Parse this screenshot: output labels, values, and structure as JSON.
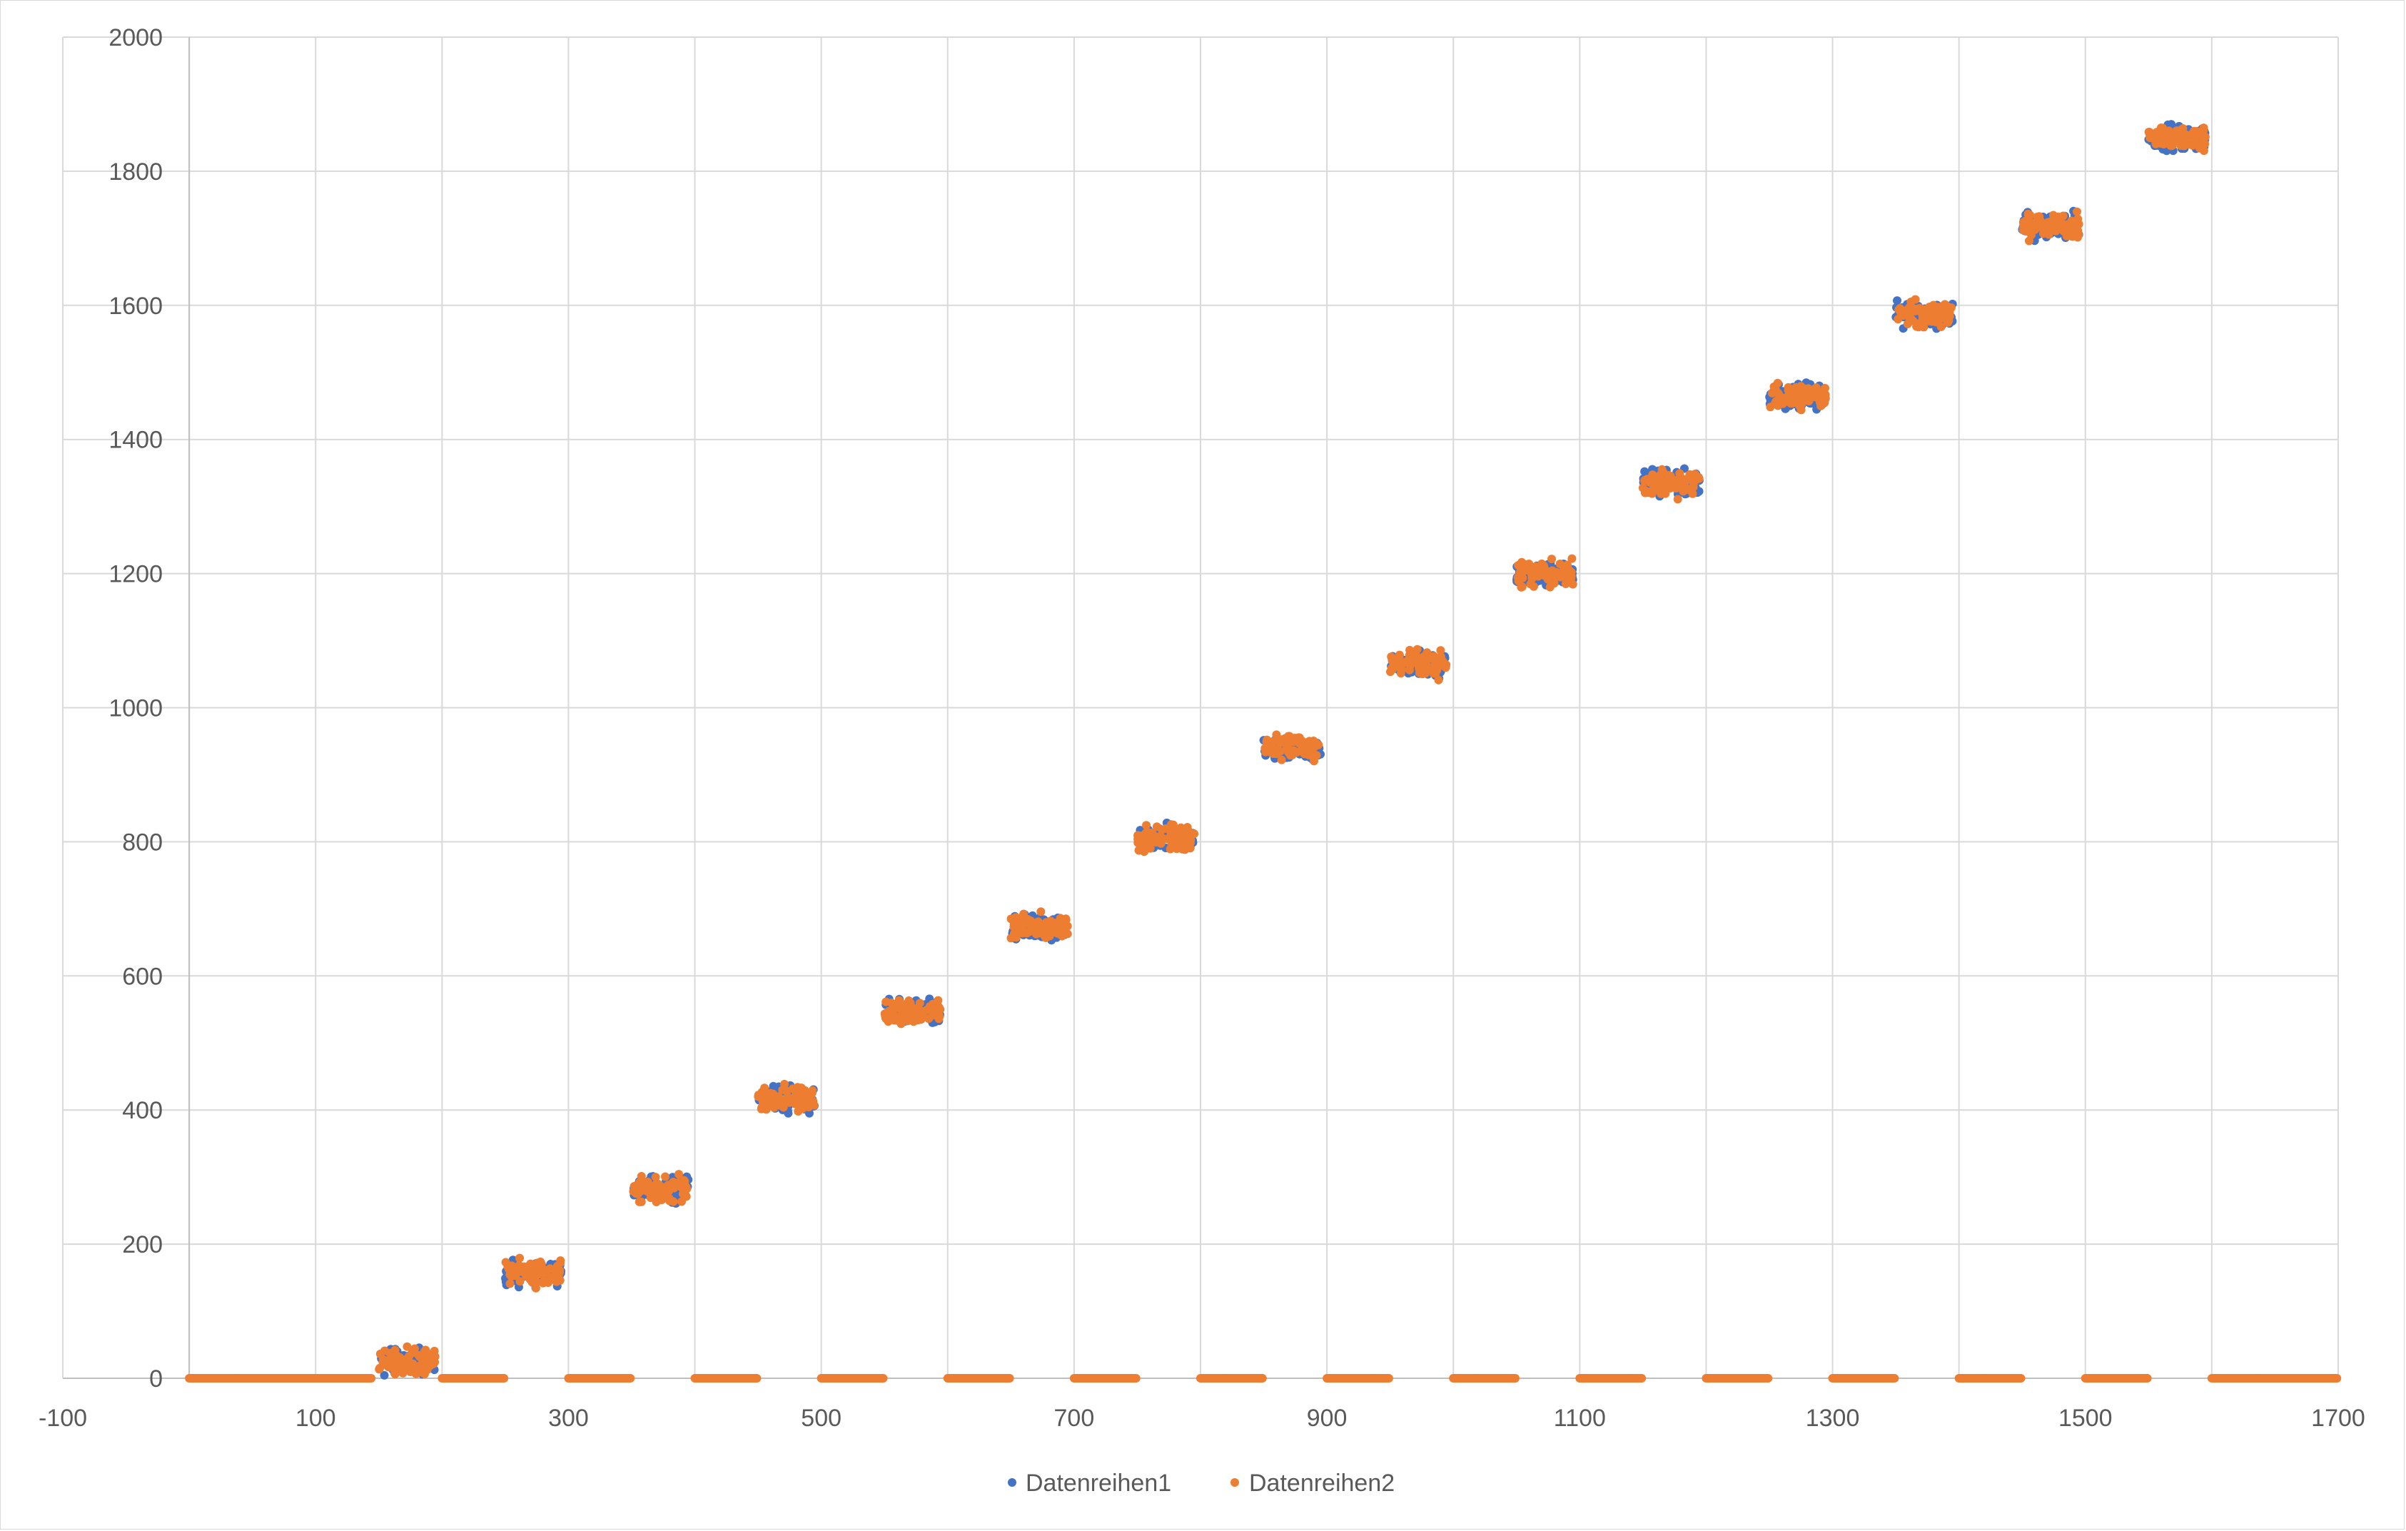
{
  "chart_data": {
    "type": "scatter",
    "title": "",
    "xlabel": "",
    "ylabel": "",
    "xlim": [
      -100,
      1700
    ],
    "ylim": [
      0,
      2000
    ],
    "x_ticks": [
      -100,
      100,
      300,
      500,
      700,
      900,
      1100,
      1300,
      1500,
      1700
    ],
    "y_ticks": [
      0,
      200,
      400,
      600,
      800,
      1000,
      1200,
      1400,
      1600,
      1800,
      2000
    ],
    "x_gridlines": [
      -100,
      0,
      100,
      200,
      300,
      400,
      500,
      600,
      700,
      800,
      900,
      1000,
      1100,
      1200,
      1300,
      1400,
      1500,
      1600,
      1700
    ],
    "grid": true,
    "legend_position": "bottom",
    "description_of_pattern": {
      "active_blocks_x_start": [
        150,
        250,
        350,
        450,
        550,
        650,
        750,
        850,
        950,
        1050,
        1150,
        1250,
        1350,
        1450,
        1550
      ],
      "active_block_width": 45,
      "active_block_y_center": [
        25,
        158,
        283,
        415,
        545,
        672,
        805,
        940,
        1065,
        1200,
        1335,
        1465,
        1585,
        1718,
        1850
      ],
      "active_block_y_spread": 25,
      "zero_segments_x": [
        [
          0,
          50
        ],
        [
          50,
          100
        ],
        [
          100,
          145
        ],
        [
          200,
          250
        ],
        [
          300,
          350
        ],
        [
          400,
          450
        ],
        [
          500,
          550
        ],
        [
          600,
          650
        ],
        [
          700,
          750
        ],
        [
          800,
          850
        ],
        [
          900,
          950
        ],
        [
          1000,
          1050
        ],
        [
          1100,
          1150
        ],
        [
          1200,
          1250
        ],
        [
          1300,
          1350
        ],
        [
          1400,
          1450
        ],
        [
          1500,
          1550
        ],
        [
          1600,
          1650
        ],
        [
          1650,
          1700
        ]
      ]
    },
    "series": [
      {
        "name": "Datenreihen1",
        "color": "#4472c4"
      },
      {
        "name": "Datenreihen2",
        "color": "#ed7d31"
      }
    ]
  }
}
